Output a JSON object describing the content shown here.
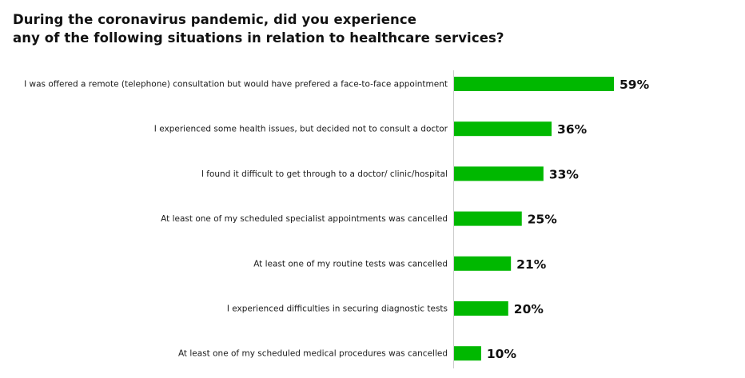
{
  "title_lines": [
    "During the coronavirus pandemic, did you experience",
    "any of the following situations in relation to healthcare services?"
  ],
  "chart_data": {
    "type": "bar",
    "orientation": "horizontal",
    "title": "During the coronavirus pandemic, did you experience any of the following situations in relation to healthcare services?",
    "categories": [
      "I was offered a remote (telephone) consultation but would have prefered a face-to-face appointment",
      "I experienced some health issues, but decided not to consult a doctor",
      "I found it difficult to get through to a doctor/ clinic/hospital",
      "At least one of my scheduled specialist appointments was cancelled",
      "At least one of my routine tests was cancelled",
      "I experienced difficulties in securing diagnostic tests",
      "At least one of my scheduled medical procedures was cancelled"
    ],
    "values": [
      59,
      36,
      33,
      25,
      21,
      20,
      10
    ],
    "value_labels": [
      "59%",
      "36%",
      "33%",
      "25%",
      "21%",
      "20%",
      "10%"
    ],
    "unit": "%",
    "bar_color": "#00b800",
    "axis_color": "#cccccc",
    "xlim": [
      0,
      100
    ],
    "grid": false,
    "legend": "none"
  }
}
